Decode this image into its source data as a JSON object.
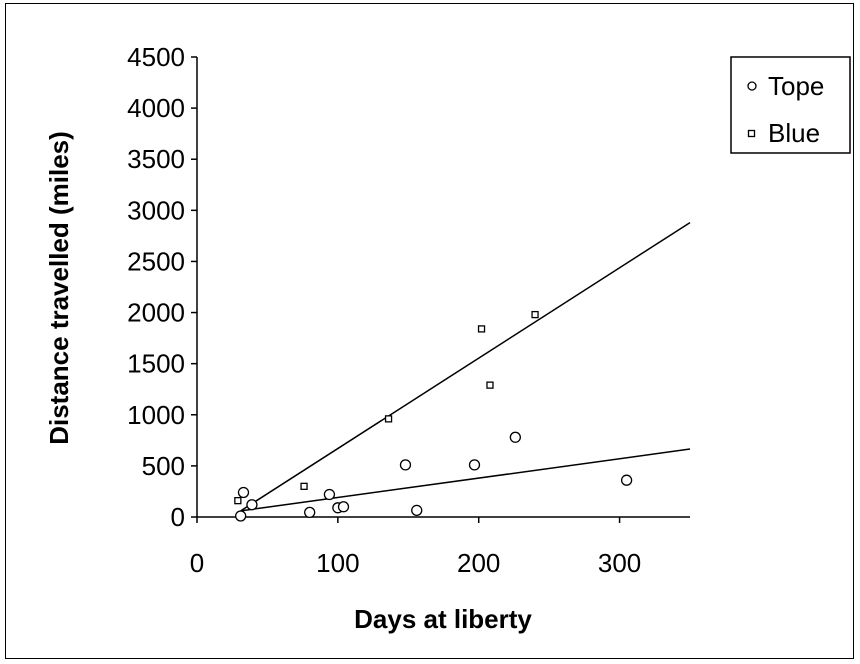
{
  "chart_data": {
    "type": "scatter",
    "xlabel": "Days at liberty",
    "ylabel": "Distance travelled (miles)",
    "xlim": [
      0,
      350
    ],
    "ylim": [
      0,
      4500
    ],
    "x_ticks": [
      "0",
      "100",
      "200",
      "300"
    ],
    "y_ticks": [
      "0",
      "500",
      "1000",
      "1500",
      "2000",
      "2500",
      "3000",
      "3500",
      "4000",
      "4500"
    ],
    "grid": false,
    "legend_position": "top-right",
    "series": [
      {
        "name": "Tope",
        "marker": "circle",
        "points": [
          [
            31,
            10
          ],
          [
            33,
            240
          ],
          [
            39,
            120
          ],
          [
            80,
            45
          ],
          [
            94,
            220
          ],
          [
            100,
            90
          ],
          [
            104,
            100
          ],
          [
            148,
            510
          ],
          [
            156,
            65
          ],
          [
            197,
            510
          ],
          [
            226,
            780
          ],
          [
            305,
            360
          ]
        ],
        "trendline": [
          [
            31,
            60
          ],
          [
            350,
            665
          ]
        ]
      },
      {
        "name": "Blue",
        "marker": "square",
        "points": [
          [
            29,
            160
          ],
          [
            76,
            300
          ],
          [
            136,
            960
          ],
          [
            202,
            1840
          ],
          [
            208,
            1290
          ],
          [
            240,
            1980
          ]
        ],
        "trendline": [
          [
            31,
            60
          ],
          [
            350,
            2880
          ]
        ]
      }
    ]
  }
}
